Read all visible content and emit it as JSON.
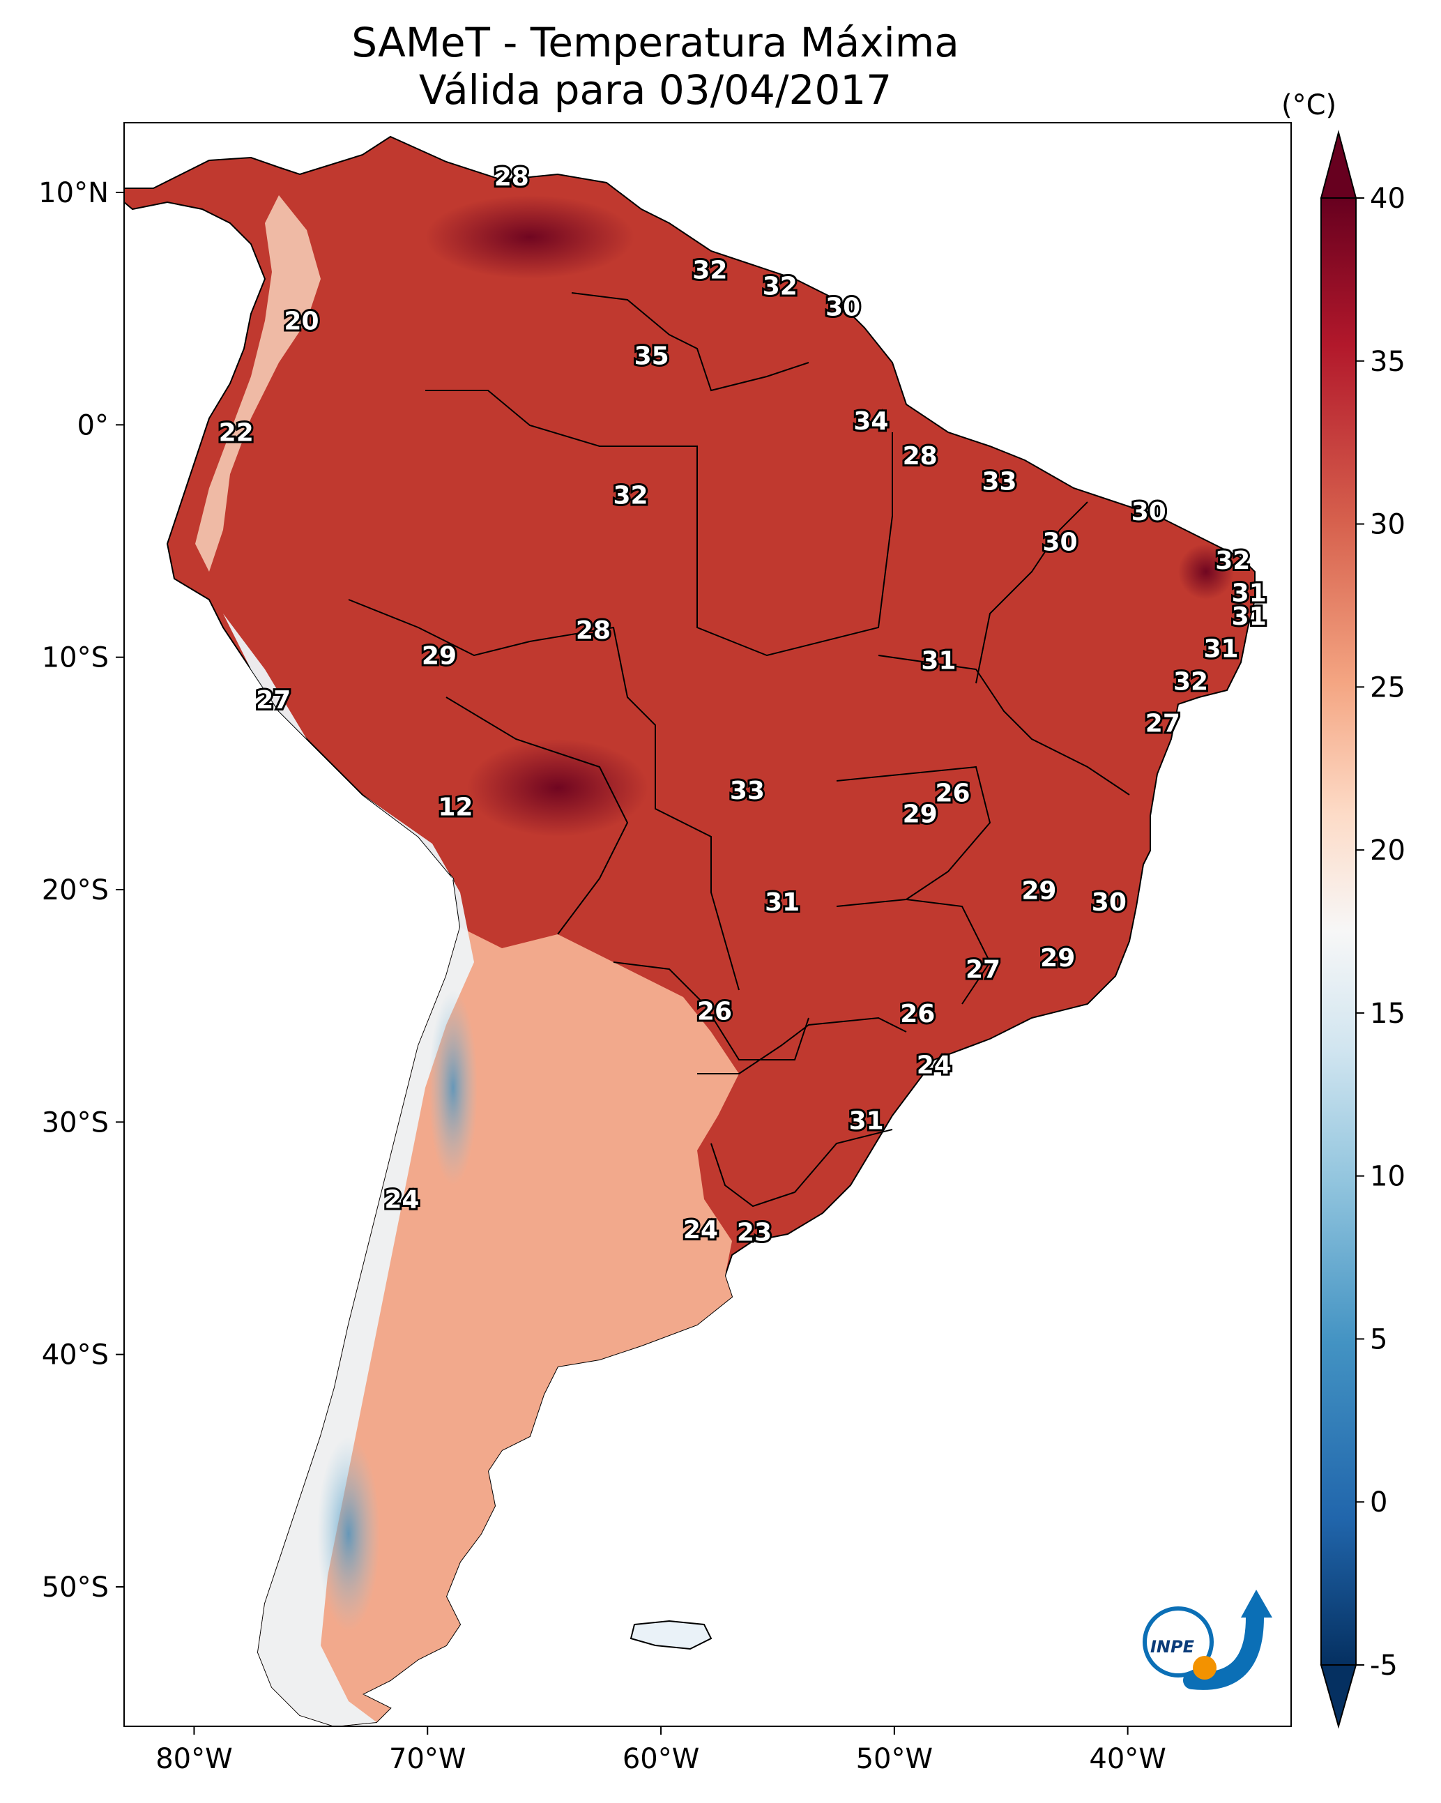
{
  "title": {
    "line1": "SAMeT - Temperatura Máxima",
    "line2": "Válida para 03/04/2017"
  },
  "colorbar": {
    "unit": "(°C)",
    "ticks": [
      "40",
      "35",
      "30",
      "25",
      "20",
      "15",
      "10",
      "5",
      "0",
      "-5"
    ],
    "range": [
      -5,
      40
    ],
    "colors": [
      "#053061",
      "#2166ac",
      "#4393c3",
      "#92c5de",
      "#d1e5f0",
      "#f7f7f7",
      "#fddbc7",
      "#f4a582",
      "#d6604d",
      "#b2182b",
      "#67001f"
    ]
  },
  "axes": {
    "lon_ticks": [
      {
        "lon": -80,
        "label": "80°W"
      },
      {
        "lon": -70,
        "label": "70°W"
      },
      {
        "lon": -60,
        "label": "60°W"
      },
      {
        "lon": -50,
        "label": "50°W"
      },
      {
        "lon": -40,
        "label": "40°W"
      }
    ],
    "lat_ticks": [
      {
        "lat": 10,
        "label": "10°N"
      },
      {
        "lat": 0,
        "label": "0°"
      },
      {
        "lat": -10,
        "label": "10°S"
      },
      {
        "lat": -20,
        "label": "20°S"
      },
      {
        "lat": -30,
        "label": "30°S"
      },
      {
        "lat": -40,
        "label": "40°S"
      },
      {
        "lat": -50,
        "label": "50°S"
      }
    ],
    "lon_range": [
      -83,
      -33
    ],
    "lat_range": [
      -56,
      13
    ]
  },
  "map_labels": [
    {
      "lon": -66.4,
      "lat": 10.6,
      "text": "28"
    },
    {
      "lon": -57.9,
      "lat": 6.6,
      "text": "32"
    },
    {
      "lon": -54.9,
      "lat": 5.9,
      "text": "32"
    },
    {
      "lon": -52.2,
      "lat": 5.0,
      "text": "30"
    },
    {
      "lon": -75.4,
      "lat": 4.4,
      "text": "20"
    },
    {
      "lon": -60.4,
      "lat": 2.9,
      "text": "35"
    },
    {
      "lon": -51.0,
      "lat": 0.1,
      "text": "34"
    },
    {
      "lon": -78.2,
      "lat": -0.4,
      "text": "22"
    },
    {
      "lon": -48.9,
      "lat": -1.4,
      "text": "28"
    },
    {
      "lon": -45.5,
      "lat": -2.5,
      "text": "33"
    },
    {
      "lon": -61.3,
      "lat": -3.1,
      "text": "32"
    },
    {
      "lon": -39.1,
      "lat": -3.8,
      "text": "30"
    },
    {
      "lon": -42.9,
      "lat": -5.1,
      "text": "30"
    },
    {
      "lon": -35.5,
      "lat": -5.9,
      "text": "32"
    },
    {
      "lon": -34.8,
      "lat": -7.3,
      "text": "31"
    },
    {
      "lon": -34.8,
      "lat": -8.3,
      "text": "31"
    },
    {
      "lon": -62.9,
      "lat": -8.9,
      "text": "28"
    },
    {
      "lon": -36.0,
      "lat": -9.7,
      "text": "31"
    },
    {
      "lon": -69.5,
      "lat": -10.0,
      "text": "29"
    },
    {
      "lon": -48.1,
      "lat": -10.2,
      "text": "31"
    },
    {
      "lon": -37.3,
      "lat": -11.1,
      "text": "32"
    },
    {
      "lon": -76.6,
      "lat": -11.9,
      "text": "27"
    },
    {
      "lon": -38.5,
      "lat": -12.9,
      "text": "27"
    },
    {
      "lon": -47.5,
      "lat": -15.9,
      "text": "26"
    },
    {
      "lon": -56.3,
      "lat": -15.8,
      "text": "33"
    },
    {
      "lon": -48.9,
      "lat": -16.8,
      "text": "29"
    },
    {
      "lon": -68.8,
      "lat": -16.5,
      "text": "12"
    },
    {
      "lon": -43.8,
      "lat": -20.1,
      "text": "29"
    },
    {
      "lon": -40.8,
      "lat": -20.6,
      "text": "30"
    },
    {
      "lon": -54.8,
      "lat": -20.6,
      "text": "31"
    },
    {
      "lon": -43.0,
      "lat": -23.0,
      "text": "29"
    },
    {
      "lon": -46.2,
      "lat": -23.5,
      "text": "27"
    },
    {
      "lon": -57.7,
      "lat": -25.3,
      "text": "26"
    },
    {
      "lon": -49.0,
      "lat": -25.4,
      "text": "26"
    },
    {
      "lon": -48.3,
      "lat": -27.6,
      "text": "24"
    },
    {
      "lon": -51.2,
      "lat": -30.0,
      "text": "31"
    },
    {
      "lon": -71.1,
      "lat": -33.4,
      "text": "24"
    },
    {
      "lon": -58.3,
      "lat": -34.7,
      "text": "24"
    },
    {
      "lon": -56.0,
      "lat": -34.8,
      "text": "23"
    }
  ],
  "logo": {
    "text": "INPE"
  }
}
